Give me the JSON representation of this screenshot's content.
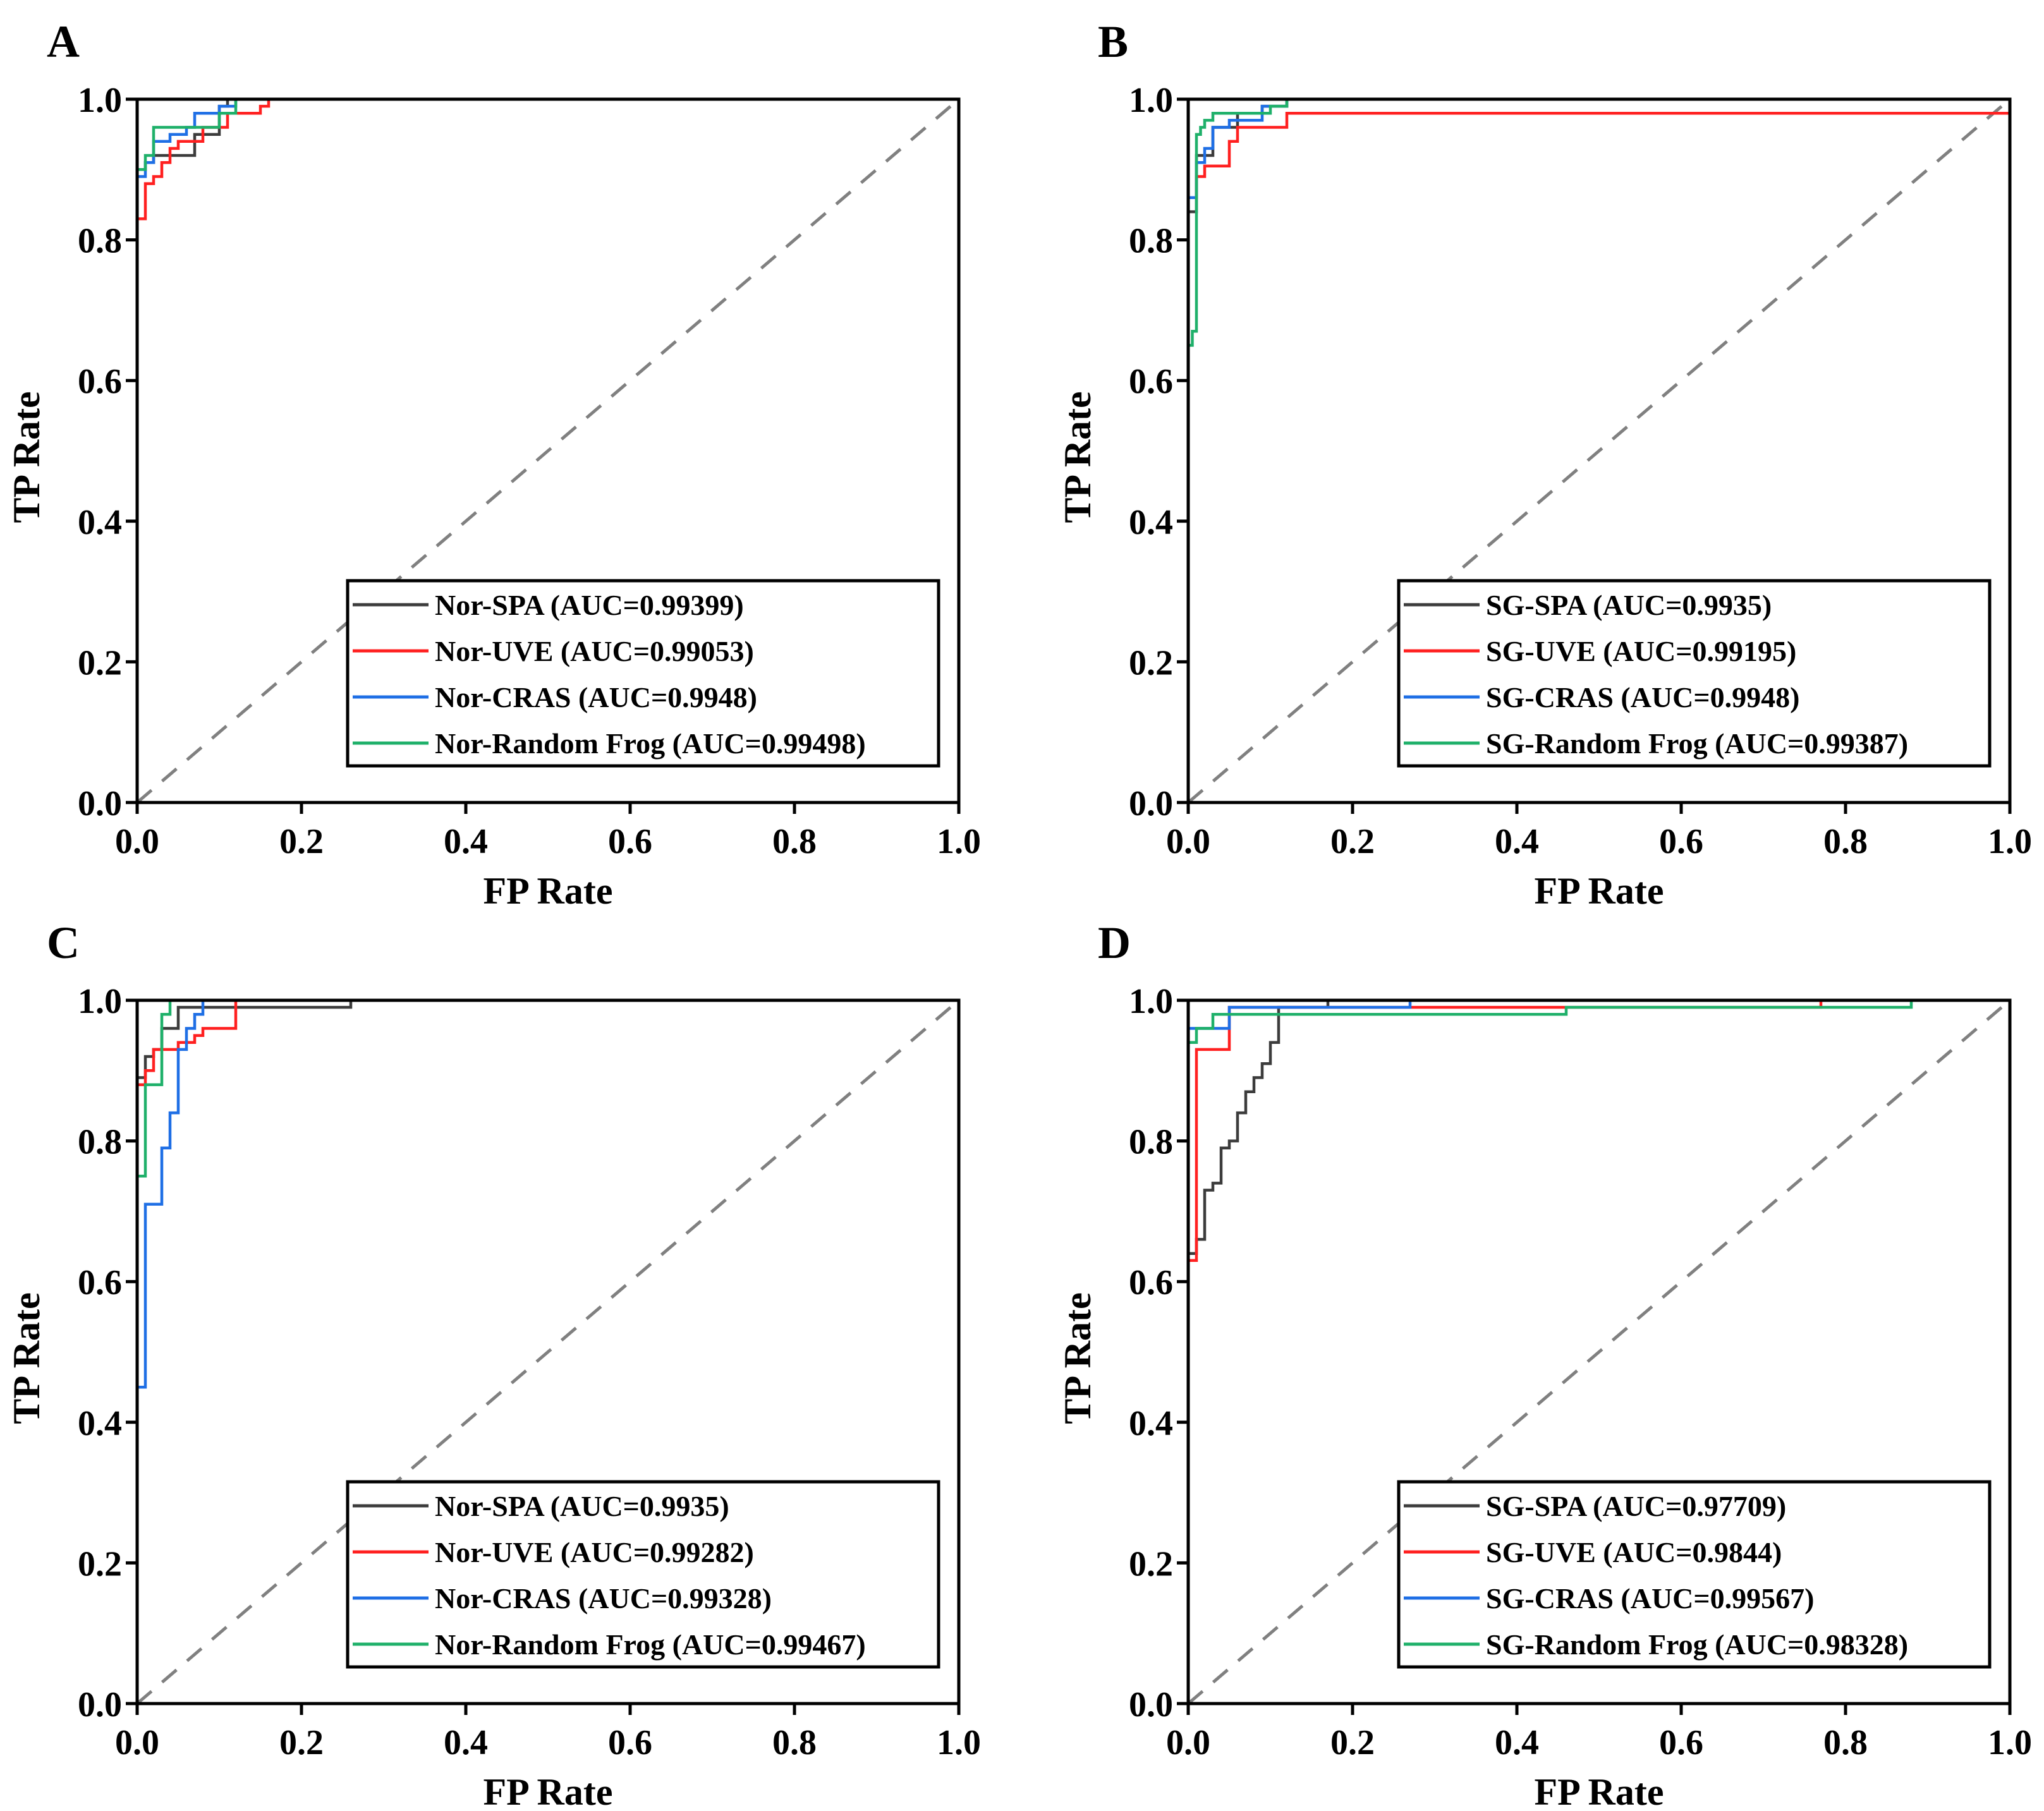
{
  "colors": {
    "black": "#3c3c3c",
    "red": "#ff2020",
    "blue": "#1f6fe5",
    "green": "#1fb06a",
    "diagonal": "#808080"
  },
  "chart_data": [
    {
      "type": "line",
      "panel": "A",
      "xlabel": "FP Rate",
      "ylabel": "TP Rate",
      "xlim": [
        0,
        1
      ],
      "ylim": [
        0,
        1
      ],
      "xticks": [
        "0.0",
        "0.2",
        "0.4",
        "0.6",
        "0.8",
        "1.0"
      ],
      "yticks": [
        "0.0",
        "0.2",
        "0.4",
        "0.6",
        "0.8",
        "1.0"
      ],
      "diagonal": true,
      "legend_position": "bottom-right",
      "series": [
        {
          "name": "Nor-SPA (AUC=0.99399)",
          "color": "black",
          "x": [
            0.0,
            0.0,
            0.01,
            0.01,
            0.02,
            0.02,
            0.03,
            0.03,
            0.07,
            0.07,
            0.1,
            0.1,
            0.11,
            0.11,
            1.0
          ],
          "y": [
            0.0,
            0.9,
            0.9,
            0.91,
            0.91,
            0.92,
            0.92,
            0.92,
            0.92,
            0.95,
            0.95,
            0.99,
            0.99,
            1.0,
            1.0
          ]
        },
        {
          "name": "Nor-UVE (AUC=0.99053)",
          "color": "red",
          "x": [
            0.0,
            0.0,
            0.01,
            0.01,
            0.02,
            0.02,
            0.03,
            0.03,
            0.04,
            0.04,
            0.05,
            0.05,
            0.08,
            0.08,
            0.11,
            0.11,
            0.15,
            0.15,
            0.16,
            0.16,
            1.0
          ],
          "y": [
            0.0,
            0.83,
            0.83,
            0.88,
            0.88,
            0.89,
            0.89,
            0.91,
            0.91,
            0.93,
            0.93,
            0.94,
            0.94,
            0.96,
            0.96,
            0.98,
            0.98,
            0.99,
            0.99,
            1.0,
            1.0
          ]
        },
        {
          "name": "Nor-CRAS (AUC=0.9948)",
          "color": "blue",
          "x": [
            0.0,
            0.0,
            0.01,
            0.01,
            0.02,
            0.02,
            0.04,
            0.04,
            0.06,
            0.06,
            0.07,
            0.07,
            0.1,
            0.1,
            0.12,
            0.12,
            1.0
          ],
          "y": [
            0.0,
            0.89,
            0.89,
            0.91,
            0.91,
            0.94,
            0.94,
            0.95,
            0.95,
            0.96,
            0.96,
            0.98,
            0.98,
            0.99,
            0.99,
            1.0,
            1.0
          ]
        },
        {
          "name": "Nor-Random Frog (AUC=0.99498)",
          "color": "green",
          "x": [
            0.0,
            0.0,
            0.01,
            0.01,
            0.02,
            0.02,
            0.1,
            0.1,
            0.12,
            0.12,
            1.0
          ],
          "y": [
            0.0,
            0.9,
            0.9,
            0.92,
            0.92,
            0.96,
            0.96,
            0.98,
            0.98,
            1.0,
            1.0
          ]
        }
      ]
    },
    {
      "type": "line",
      "panel": "B",
      "xlabel": "FP Rate",
      "ylabel": "TP Rate",
      "xlim": [
        0,
        1
      ],
      "ylim": [
        0,
        1
      ],
      "xticks": [
        "0.0",
        "0.2",
        "0.4",
        "0.6",
        "0.8",
        "1.0"
      ],
      "yticks": [
        "0.0",
        "0.2",
        "0.4",
        "0.6",
        "0.8",
        "1.0"
      ],
      "diagonal": true,
      "legend_position": "bottom-right",
      "series": [
        {
          "name": "SG-SPA (AUC=0.9935)",
          "color": "black",
          "x": [
            0.0,
            0.0,
            0.01,
            0.01,
            0.03,
            0.03,
            0.06,
            0.06,
            0.09,
            0.09,
            0.12,
            0.12,
            1.0
          ],
          "y": [
            0.0,
            0.84,
            0.84,
            0.92,
            0.92,
            0.96,
            0.96,
            0.98,
            0.98,
            0.99,
            0.99,
            1.0,
            1.0
          ]
        },
        {
          "name": "SG-UVE (AUC=0.99195)",
          "color": "red",
          "x": [
            0.0,
            0.0,
            0.01,
            0.01,
            0.02,
            0.02,
            0.05,
            0.05,
            0.06,
            0.06,
            0.12,
            0.12,
            1.0
          ],
          "y": [
            0.0,
            0.86,
            0.86,
            0.89,
            0.89,
            0.905,
            0.905,
            0.94,
            0.94,
            0.96,
            0.96,
            0.98,
            0.98
          ]
        },
        {
          "name": "SG-CRAS (AUC=0.9948)",
          "color": "blue",
          "x": [
            0.0,
            0.0,
            0.01,
            0.01,
            0.02,
            0.02,
            0.03,
            0.03,
            0.05,
            0.05,
            0.09,
            0.09,
            0.12,
            0.12,
            1.0
          ],
          "y": [
            0.0,
            0.86,
            0.86,
            0.91,
            0.91,
            0.93,
            0.93,
            0.96,
            0.96,
            0.97,
            0.97,
            0.99,
            0.99,
            1.0,
            1.0
          ]
        },
        {
          "name": "SG-Random Frog (AUC=0.99387)",
          "color": "green",
          "x": [
            0.0,
            0.0,
            0.005,
            0.005,
            0.01,
            0.01,
            0.015,
            0.015,
            0.02,
            0.02,
            0.03,
            0.03,
            0.1,
            0.1,
            0.12,
            0.12,
            1.0
          ],
          "y": [
            0.0,
            0.65,
            0.65,
            0.67,
            0.67,
            0.95,
            0.95,
            0.96,
            0.96,
            0.97,
            0.97,
            0.98,
            0.98,
            0.99,
            0.99,
            1.0,
            1.0
          ]
        }
      ]
    },
    {
      "type": "line",
      "panel": "C",
      "xlabel": "FP Rate",
      "ylabel": "TP Rate",
      "xlim": [
        0,
        1
      ],
      "ylim": [
        0,
        1
      ],
      "xticks": [
        "0.0",
        "0.2",
        "0.4",
        "0.6",
        "0.8",
        "1.0"
      ],
      "yticks": [
        "0.0",
        "0.2",
        "0.4",
        "0.6",
        "0.8",
        "1.0"
      ],
      "diagonal": true,
      "legend_position": "bottom-right",
      "series": [
        {
          "name": "Nor-SPA (AUC=0.9935)",
          "color": "black",
          "x": [
            0.0,
            0.0,
            0.01,
            0.01,
            0.02,
            0.02,
            0.03,
            0.03,
            0.05,
            0.05,
            0.26,
            0.26,
            1.0
          ],
          "y": [
            0.0,
            0.89,
            0.89,
            0.92,
            0.92,
            0.93,
            0.93,
            0.96,
            0.96,
            0.99,
            0.99,
            1.0,
            1.0
          ]
        },
        {
          "name": "Nor-UVE (AUC=0.99282)",
          "color": "red",
          "x": [
            0.0,
            0.0,
            0.01,
            0.01,
            0.02,
            0.02,
            0.05,
            0.05,
            0.07,
            0.07,
            0.08,
            0.08,
            0.12,
            0.12,
            1.0
          ],
          "y": [
            0.0,
            0.88,
            0.88,
            0.9,
            0.9,
            0.93,
            0.93,
            0.94,
            0.94,
            0.95,
            0.95,
            0.96,
            0.96,
            1.0,
            1.0
          ]
        },
        {
          "name": "Nor-CRAS (AUC=0.99328)",
          "color": "blue",
          "x": [
            0.0,
            0.0,
            0.01,
            0.01,
            0.03,
            0.03,
            0.04,
            0.04,
            0.05,
            0.05,
            0.06,
            0.06,
            0.07,
            0.07,
            0.08,
            0.08,
            1.0
          ],
          "y": [
            0.0,
            0.45,
            0.45,
            0.71,
            0.71,
            0.79,
            0.79,
            0.84,
            0.84,
            0.93,
            0.93,
            0.96,
            0.96,
            0.98,
            0.98,
            1.0,
            1.0
          ]
        },
        {
          "name": "Nor-Random Frog (AUC=0.99467)",
          "color": "green",
          "x": [
            0.0,
            0.0,
            0.01,
            0.01,
            0.02,
            0.02,
            0.03,
            0.03,
            0.04,
            0.04,
            1.0
          ],
          "y": [
            0.0,
            0.75,
            0.75,
            0.88,
            0.88,
            0.88,
            0.88,
            0.98,
            0.98,
            1.0,
            1.0
          ]
        }
      ]
    },
    {
      "type": "line",
      "panel": "D",
      "xlabel": "FP Rate",
      "ylabel": "TP Rate",
      "xlim": [
        0,
        1
      ],
      "ylim": [
        0,
        1
      ],
      "xticks": [
        "0.0",
        "0.2",
        "0.4",
        "0.6",
        "0.8",
        "1.0"
      ],
      "yticks": [
        "0.0",
        "0.2",
        "0.4",
        "0.6",
        "0.8",
        "1.0"
      ],
      "diagonal": true,
      "legend_position": "bottom-right",
      "series": [
        {
          "name": "SG-SPA (AUC=0.97709)",
          "color": "black",
          "x": [
            0.0,
            0.0,
            0.01,
            0.01,
            0.02,
            0.02,
            0.03,
            0.03,
            0.04,
            0.04,
            0.05,
            0.05,
            0.06,
            0.06,
            0.07,
            0.07,
            0.08,
            0.08,
            0.09,
            0.09,
            0.1,
            0.1,
            0.11,
            0.11,
            0.17,
            0.17,
            1.0
          ],
          "y": [
            0.0,
            0.64,
            0.64,
            0.66,
            0.66,
            0.73,
            0.73,
            0.74,
            0.74,
            0.79,
            0.79,
            0.8,
            0.8,
            0.84,
            0.84,
            0.87,
            0.87,
            0.89,
            0.89,
            0.91,
            0.91,
            0.94,
            0.94,
            0.99,
            0.99,
            1.0,
            1.0
          ]
        },
        {
          "name": "SG-UVE (AUC=0.9844)",
          "color": "red",
          "x": [
            0.0,
            0.0,
            0.01,
            0.01,
            0.05,
            0.05,
            0.77,
            0.77,
            1.0
          ],
          "y": [
            0.0,
            0.63,
            0.63,
            0.93,
            0.93,
            0.99,
            0.99,
            1.0,
            1.0
          ]
        },
        {
          "name": "SG-CRAS (AUC=0.99567)",
          "color": "blue",
          "x": [
            0.0,
            0.0,
            0.05,
            0.05,
            0.27,
            0.27,
            1.0
          ],
          "y": [
            0.0,
            0.96,
            0.96,
            0.99,
            0.99,
            1.0,
            1.0
          ]
        },
        {
          "name": "SG-Random Frog (AUC=0.98328)",
          "color": "green",
          "x": [
            0.0,
            0.0,
            0.01,
            0.01,
            0.03,
            0.03,
            0.46,
            0.46,
            0.88,
            0.88,
            1.0
          ],
          "y": [
            0.0,
            0.94,
            0.94,
            0.96,
            0.96,
            0.98,
            0.98,
            0.99,
            0.99,
            1.0,
            1.0
          ]
        }
      ]
    }
  ]
}
